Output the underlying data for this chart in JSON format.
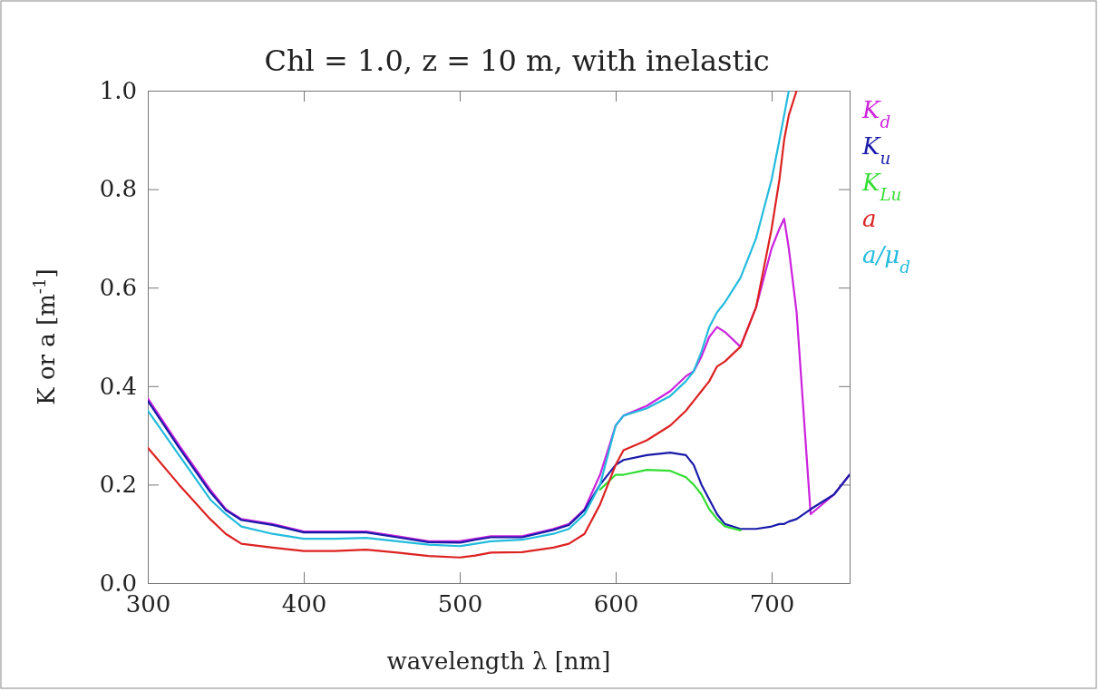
{
  "chart_data": {
    "type": "line",
    "title": "Chl = 1.0, z = 10 m, with inelastic",
    "xlabel": "wavelength λ [nm]",
    "ylabel": "K or a [m$^{-1}$]",
    "x": [
      300,
      320,
      340,
      350,
      360,
      380,
      400,
      420,
      440,
      460,
      480,
      500,
      510,
      520,
      540,
      560,
      570,
      580,
      590,
      600,
      605,
      620,
      635,
      645,
      650,
      655,
      660,
      665,
      670,
      680,
      690,
      700,
      705,
      708,
      711,
      716,
      725,
      740,
      750
    ],
    "series": [
      {
        "name": "K$_{d}$",
        "color": "#cc22dd",
        "values": [
          0.375,
          0.28,
          0.19,
          0.15,
          0.13,
          0.12,
          0.105,
          0.105,
          0.105,
          0.095,
          0.085,
          0.085,
          0.09,
          0.095,
          0.095,
          0.11,
          0.12,
          0.15,
          0.22,
          0.32,
          0.34,
          0.36,
          0.39,
          0.42,
          0.43,
          0.46,
          0.5,
          0.52,
          0.51,
          0.48,
          0.56,
          0.68,
          0.72,
          0.74,
          0.68,
          0.55,
          0.14,
          0.18,
          0.22
        ]
      },
      {
        "name": "K$_{u}$",
        "color": "#1a1aaa",
        "values": [
          0.37,
          0.275,
          0.185,
          0.148,
          0.128,
          0.118,
          0.103,
          0.103,
          0.103,
          0.093,
          0.083,
          0.082,
          0.088,
          0.093,
          0.093,
          0.108,
          0.118,
          0.148,
          0.2,
          0.24,
          0.25,
          0.26,
          0.265,
          0.26,
          0.24,
          0.2,
          0.17,
          0.14,
          0.12,
          0.11,
          0.11,
          0.115,
          0.12,
          0.12,
          0.125,
          0.13,
          0.15,
          0.18,
          0.22
        ]
      },
      {
        "name": "K$_{Lu}$",
        "color": "#33dd33",
        "values": [
          null,
          null,
          null,
          null,
          null,
          null,
          null,
          null,
          null,
          null,
          null,
          null,
          null,
          null,
          null,
          null,
          null,
          null,
          0.19,
          0.22,
          0.22,
          0.23,
          0.228,
          0.215,
          0.2,
          0.18,
          0.15,
          0.13,
          0.115,
          0.107,
          null,
          null,
          null,
          null,
          null,
          null,
          null,
          null,
          null
        ]
      },
      {
        "name": "a",
        "color": "#dd2222",
        "values": [
          0.275,
          0.2,
          0.13,
          0.1,
          0.08,
          0.072,
          0.065,
          0.065,
          0.068,
          0.062,
          0.055,
          0.052,
          0.056,
          0.062,
          0.063,
          0.072,
          0.08,
          0.1,
          0.16,
          0.24,
          0.27,
          0.29,
          0.32,
          0.35,
          0.37,
          0.39,
          0.41,
          0.44,
          0.45,
          0.48,
          0.56,
          0.72,
          0.82,
          0.9,
          0.95,
          1.0,
          null,
          null,
          null
        ]
      },
      {
        "name": "a/μ$_{d}$",
        "color": "#22bbdd",
        "values": [
          0.35,
          0.26,
          0.17,
          0.14,
          0.115,
          0.1,
          0.09,
          0.09,
          0.092,
          0.085,
          0.078,
          0.075,
          0.08,
          0.085,
          0.088,
          0.1,
          0.11,
          0.14,
          0.2,
          0.32,
          0.34,
          0.355,
          0.38,
          0.41,
          0.43,
          0.47,
          0.52,
          0.55,
          0.57,
          0.62,
          0.7,
          0.82,
          0.9,
          0.95,
          1.0,
          null,
          null,
          null,
          null
        ]
      }
    ],
    "xlim": [
      300,
      750
    ],
    "xticks": [
      300,
      400,
      500,
      600,
      700
    ],
    "ylim": [
      0,
      1
    ],
    "yticks": [
      {
        "value": 0,
        "label": "0.0"
      },
      0.2,
      0.4,
      0.6,
      0.8,
      {
        "value": 1,
        "label": "1.0"
      }
    ],
    "grid": false,
    "legend": "top right",
    "marker": "none",
    "line_style": "solid"
  }
}
